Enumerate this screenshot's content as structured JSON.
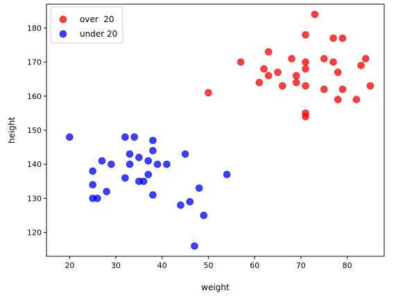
{
  "chart_data": {
    "type": "scatter",
    "title": "",
    "xlabel": "weight",
    "ylabel": "height",
    "xlim": [
      15,
      88
    ],
    "ylim": [
      113,
      187
    ],
    "x_ticks": [
      20,
      30,
      40,
      50,
      60,
      70,
      80
    ],
    "y_ticks": [
      120,
      130,
      140,
      150,
      160,
      170,
      180
    ],
    "grid": false,
    "legend_position": "upper-left",
    "series": [
      {
        "name": "over  20",
        "color": "#ff0000",
        "points": [
          [
            50,
            161
          ],
          [
            57,
            170
          ],
          [
            61,
            164
          ],
          [
            62,
            168
          ],
          [
            63,
            173
          ],
          [
            63,
            166
          ],
          [
            65,
            167
          ],
          [
            66,
            163
          ],
          [
            68,
            171
          ],
          [
            69,
            166
          ],
          [
            69,
            164
          ],
          [
            71,
            178
          ],
          [
            71,
            170
          ],
          [
            71,
            168
          ],
          [
            71,
            163
          ],
          [
            71,
            155
          ],
          [
            71,
            154
          ],
          [
            73,
            184
          ],
          [
            75,
            171
          ],
          [
            75,
            162
          ],
          [
            77,
            177
          ],
          [
            77,
            170
          ],
          [
            78,
            167
          ],
          [
            78,
            159
          ],
          [
            79,
            177
          ],
          [
            79,
            162
          ],
          [
            82,
            159
          ],
          [
            83,
            169
          ],
          [
            84,
            171
          ],
          [
            85,
            163
          ]
        ]
      },
      {
        "name": "under 20",
        "color": "#0000ff",
        "points": [
          [
            20,
            148
          ],
          [
            25,
            138
          ],
          [
            25,
            134
          ],
          [
            25,
            130
          ],
          [
            26,
            130
          ],
          [
            27,
            141
          ],
          [
            28,
            132
          ],
          [
            29,
            140
          ],
          [
            32,
            148
          ],
          [
            32,
            136
          ],
          [
            33,
            143
          ],
          [
            33,
            140
          ],
          [
            34,
            148
          ],
          [
            35,
            142
          ],
          [
            35,
            135
          ],
          [
            36,
            135
          ],
          [
            37,
            141
          ],
          [
            37,
            137
          ],
          [
            38,
            147
          ],
          [
            38,
            144
          ],
          [
            38,
            131
          ],
          [
            39,
            140
          ],
          [
            41,
            140
          ],
          [
            44,
            128
          ],
          [
            45,
            143
          ],
          [
            46,
            129
          ],
          [
            47,
            116
          ],
          [
            48,
            133
          ],
          [
            49,
            125
          ],
          [
            54,
            137
          ]
        ]
      }
    ]
  }
}
